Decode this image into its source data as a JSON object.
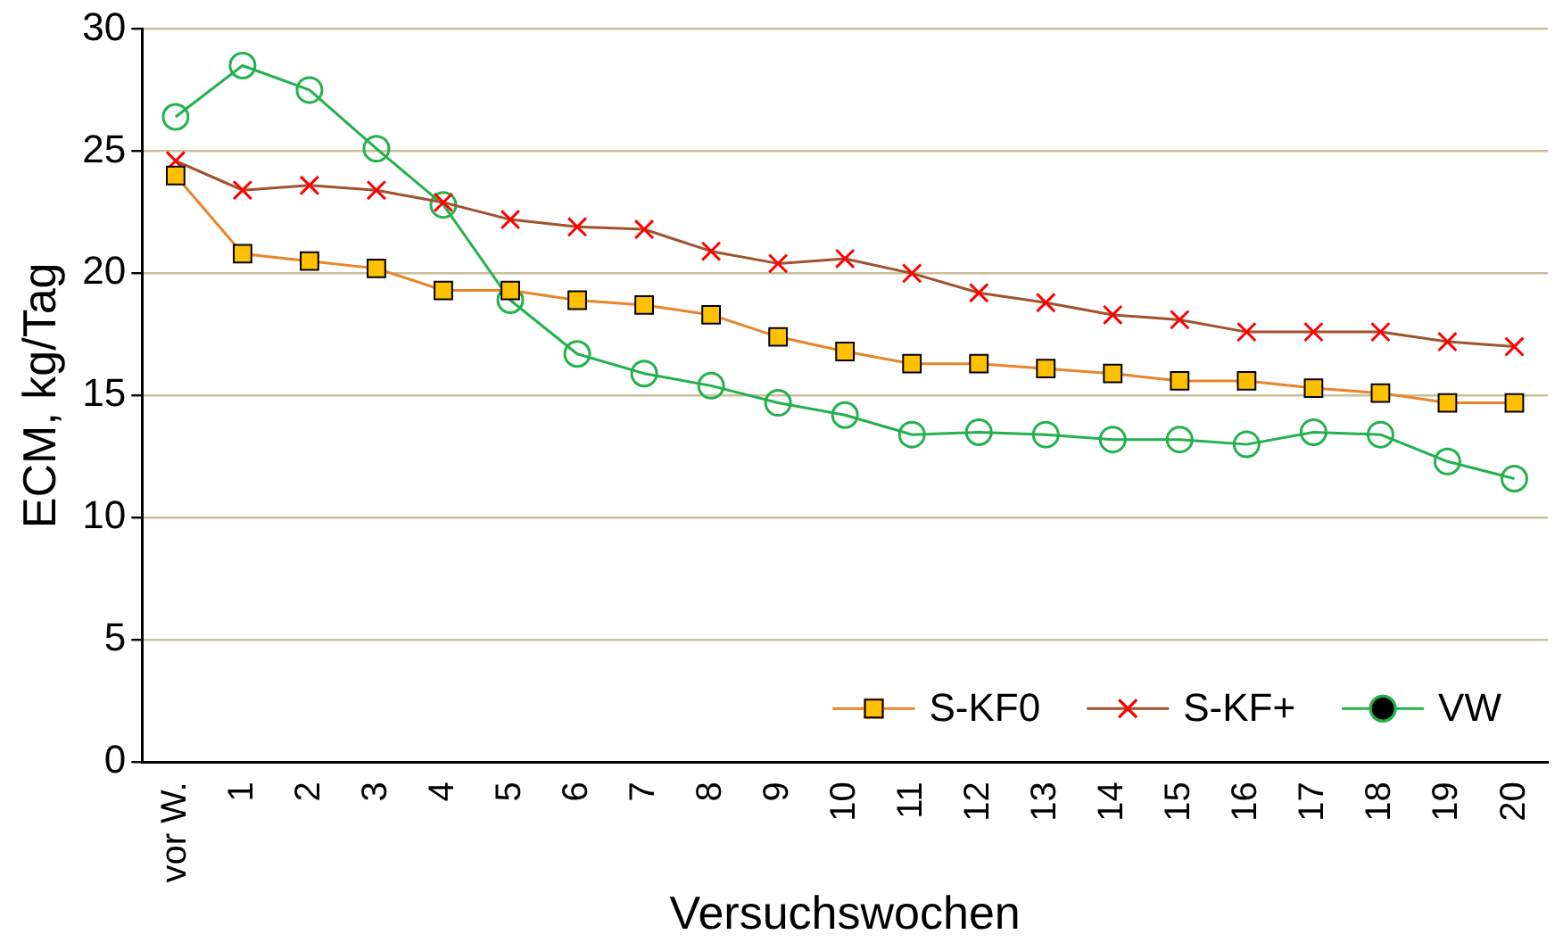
{
  "chart_data": {
    "type": "line",
    "xlabel": "Versuchswochen",
    "ylabel": "ECM, kg/Tag",
    "categories": [
      "vor W.",
      "1",
      "2",
      "3",
      "4",
      "5",
      "6",
      "7",
      "8",
      "9",
      "10",
      "11",
      "12",
      "13",
      "14",
      "15",
      "16",
      "17",
      "18",
      "19",
      "20"
    ],
    "ylim": [
      0,
      30
    ],
    "yticks": [
      0,
      5,
      10,
      15,
      20,
      25,
      30
    ],
    "grid": "y",
    "legend": "bottom right",
    "line_style": "solid",
    "series": [
      {
        "name": "S-KF0",
        "color": "#e8842a",
        "marker": "square",
        "values": [
          24.0,
          20.8,
          20.5,
          20.2,
          19.3,
          19.3,
          18.9,
          18.7,
          18.3,
          17.4,
          16.8,
          16.3,
          16.3,
          16.1,
          15.9,
          15.6,
          15.6,
          15.3,
          15.1,
          14.7,
          14.7
        ]
      },
      {
        "name": "S-KF+",
        "color": "#a0522d",
        "marker": "cross",
        "values": [
          24.6,
          23.4,
          23.6,
          23.4,
          22.9,
          22.2,
          21.9,
          21.8,
          20.9,
          20.4,
          20.6,
          20.0,
          19.2,
          18.8,
          18.3,
          18.1,
          17.6,
          17.6,
          17.6,
          17.2,
          17.0
        ]
      },
      {
        "name": "VW",
        "color": "#22b14c",
        "marker": "circle",
        "values": [
          26.4,
          28.5,
          27.5,
          25.1,
          22.8,
          18.9,
          16.7,
          15.9,
          15.4,
          14.7,
          14.2,
          13.4,
          13.5,
          13.4,
          13.2,
          13.2,
          13.0,
          13.5,
          13.4,
          12.3,
          11.6
        ]
      }
    ]
  }
}
